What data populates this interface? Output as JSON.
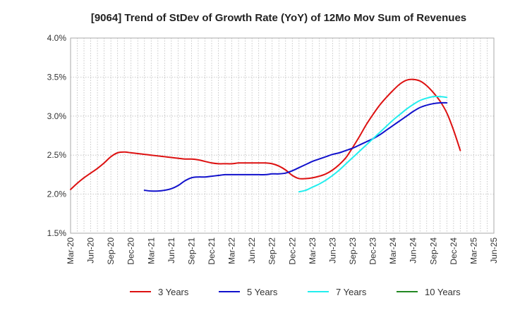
{
  "chart_data": {
    "type": "line",
    "title": "[9064]  Trend of StDev of Growth Rate (YoY) of 12Mo Mov Sum of Revenues",
    "xlabel": "",
    "ylabel": "",
    "ylim": [
      1.5,
      4.0
    ],
    "yticks": [
      {
        "value": 1.5,
        "label": "1.5%"
      },
      {
        "value": 2.0,
        "label": "2.0%"
      },
      {
        "value": 2.5,
        "label": "2.5%"
      },
      {
        "value": 3.0,
        "label": "3.0%"
      },
      {
        "value": 3.5,
        "label": "3.5%"
      },
      {
        "value": 4.0,
        "label": "4.0%"
      }
    ],
    "xlim": [
      0,
      63
    ],
    "xticks": [
      {
        "value": 0,
        "label": "Mar-20"
      },
      {
        "value": 3,
        "label": "Jun-20"
      },
      {
        "value": 6,
        "label": "Sep-20"
      },
      {
        "value": 9,
        "label": "Dec-20"
      },
      {
        "value": 12,
        "label": "Mar-21"
      },
      {
        "value": 15,
        "label": "Jun-21"
      },
      {
        "value": 18,
        "label": "Sep-21"
      },
      {
        "value": 21,
        "label": "Dec-21"
      },
      {
        "value": 24,
        "label": "Mar-22"
      },
      {
        "value": 27,
        "label": "Jun-22"
      },
      {
        "value": 30,
        "label": "Sep-22"
      },
      {
        "value": 33,
        "label": "Dec-22"
      },
      {
        "value": 36,
        "label": "Mar-23"
      },
      {
        "value": 39,
        "label": "Jun-23"
      },
      {
        "value": 42,
        "label": "Sep-23"
      },
      {
        "value": 45,
        "label": "Dec-23"
      },
      {
        "value": 48,
        "label": "Mar-24"
      },
      {
        "value": 51,
        "label": "Jun-24"
      },
      {
        "value": 54,
        "label": "Sep-24"
      },
      {
        "value": 57,
        "label": "Dec-24"
      },
      {
        "value": 60,
        "label": "Mar-25"
      },
      {
        "value": 63,
        "label": "Jun-25"
      }
    ],
    "grid": true,
    "legend_position": "bottom",
    "series": [
      {
        "name": "3 Years",
        "color": "#dd1111",
        "points": [
          [
            0,
            2.06
          ],
          [
            1,
            2.14
          ],
          [
            2,
            2.21
          ],
          [
            3,
            2.27
          ],
          [
            4,
            2.33
          ],
          [
            5,
            2.4
          ],
          [
            6,
            2.48
          ],
          [
            7,
            2.53
          ],
          [
            8,
            2.54
          ],
          [
            9,
            2.53
          ],
          [
            10,
            2.52
          ],
          [
            11,
            2.51
          ],
          [
            12,
            2.5
          ],
          [
            13,
            2.49
          ],
          [
            14,
            2.48
          ],
          [
            15,
            2.47
          ],
          [
            16,
            2.46
          ],
          [
            17,
            2.45
          ],
          [
            18,
            2.45
          ],
          [
            19,
            2.44
          ],
          [
            20,
            2.42
          ],
          [
            21,
            2.4
          ],
          [
            22,
            2.39
          ],
          [
            23,
            2.39
          ],
          [
            24,
            2.39
          ],
          [
            25,
            2.4
          ],
          [
            26,
            2.4
          ],
          [
            27,
            2.4
          ],
          [
            28,
            2.4
          ],
          [
            29,
            2.4
          ],
          [
            30,
            2.39
          ],
          [
            31,
            2.36
          ],
          [
            32,
            2.31
          ],
          [
            33,
            2.24
          ],
          [
            34,
            2.2
          ],
          [
            35,
            2.2
          ],
          [
            36,
            2.21
          ],
          [
            37,
            2.23
          ],
          [
            38,
            2.26
          ],
          [
            39,
            2.31
          ],
          [
            40,
            2.38
          ],
          [
            41,
            2.47
          ],
          [
            42,
            2.6
          ],
          [
            43,
            2.74
          ],
          [
            44,
            2.89
          ],
          [
            45,
            3.02
          ],
          [
            46,
            3.14
          ],
          [
            47,
            3.24
          ],
          [
            48,
            3.33
          ],
          [
            49,
            3.41
          ],
          [
            50,
            3.46
          ],
          [
            51,
            3.47
          ],
          [
            52,
            3.45
          ],
          [
            53,
            3.39
          ],
          [
            54,
            3.3
          ],
          [
            55,
            3.19
          ],
          [
            56,
            3.04
          ],
          [
            57,
            2.82
          ],
          [
            58,
            2.56
          ]
        ]
      },
      {
        "name": "5 Years",
        "color": "#1111cc",
        "points": [
          [
            11,
            2.05
          ],
          [
            12,
            2.04
          ],
          [
            13,
            2.04
          ],
          [
            14,
            2.05
          ],
          [
            15,
            2.07
          ],
          [
            16,
            2.11
          ],
          [
            17,
            2.17
          ],
          [
            18,
            2.21
          ],
          [
            19,
            2.22
          ],
          [
            20,
            2.22
          ],
          [
            21,
            2.23
          ],
          [
            22,
            2.24
          ],
          [
            23,
            2.25
          ],
          [
            24,
            2.25
          ],
          [
            25,
            2.25
          ],
          [
            26,
            2.25
          ],
          [
            27,
            2.25
          ],
          [
            28,
            2.25
          ],
          [
            29,
            2.25
          ],
          [
            30,
            2.26
          ],
          [
            31,
            2.26
          ],
          [
            32,
            2.27
          ],
          [
            33,
            2.3
          ],
          [
            34,
            2.34
          ],
          [
            35,
            2.38
          ],
          [
            36,
            2.42
          ],
          [
            37,
            2.45
          ],
          [
            38,
            2.48
          ],
          [
            39,
            2.51
          ],
          [
            40,
            2.53
          ],
          [
            41,
            2.56
          ],
          [
            42,
            2.59
          ],
          [
            43,
            2.63
          ],
          [
            44,
            2.67
          ],
          [
            45,
            2.71
          ],
          [
            46,
            2.76
          ],
          [
            47,
            2.82
          ],
          [
            48,
            2.88
          ],
          [
            49,
            2.94
          ],
          [
            50,
            3.0
          ],
          [
            51,
            3.06
          ],
          [
            52,
            3.11
          ],
          [
            53,
            3.14
          ],
          [
            54,
            3.16
          ],
          [
            55,
            3.17
          ],
          [
            56,
            3.17
          ]
        ]
      },
      {
        "name": "7 Years",
        "color": "#22eeee",
        "points": [
          [
            34,
            2.03
          ],
          [
            35,
            2.05
          ],
          [
            36,
            2.09
          ],
          [
            37,
            2.13
          ],
          [
            38,
            2.18
          ],
          [
            39,
            2.24
          ],
          [
            40,
            2.31
          ],
          [
            41,
            2.39
          ],
          [
            42,
            2.47
          ],
          [
            43,
            2.55
          ],
          [
            44,
            2.63
          ],
          [
            45,
            2.71
          ],
          [
            46,
            2.79
          ],
          [
            47,
            2.87
          ],
          [
            48,
            2.95
          ],
          [
            49,
            3.02
          ],
          [
            50,
            3.09
          ],
          [
            51,
            3.15
          ],
          [
            52,
            3.2
          ],
          [
            53,
            3.23
          ],
          [
            54,
            3.25
          ],
          [
            55,
            3.25
          ],
          [
            56,
            3.24
          ]
        ]
      },
      {
        "name": "10 Years",
        "color": "#228822",
        "points": []
      }
    ]
  }
}
